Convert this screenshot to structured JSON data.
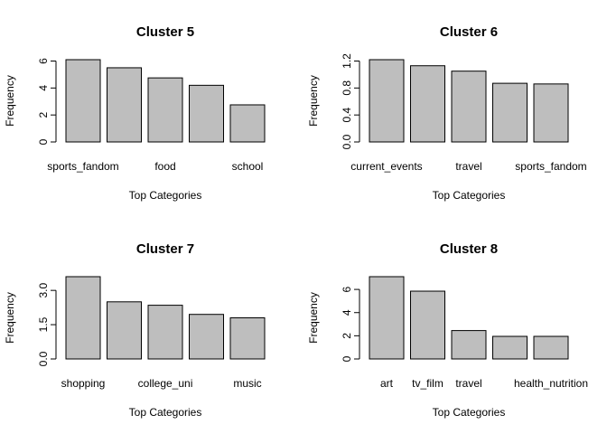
{
  "chart_data": [
    {
      "type": "bar",
      "title": "Cluster 5",
      "xlabel": "Top Categories",
      "ylabel": "Frequency",
      "categories": [
        "sports_fandom",
        "",
        "food",
        "",
        "school"
      ],
      "values": [
        6.1,
        5.5,
        4.75,
        4.2,
        2.75
      ],
      "ylim": [
        0,
        6.1
      ],
      "yticks": [
        0,
        2,
        4,
        6
      ],
      "ytick_labels": [
        "0",
        "2",
        "4",
        "6"
      ],
      "bar_color": "#bebebe"
    },
    {
      "type": "bar",
      "title": "Cluster 6",
      "xlabel": "Top Categories",
      "ylabel": "Frequency",
      "categories": [
        "current_events",
        "",
        "travel",
        "",
        "sports_fandom"
      ],
      "values": [
        1.22,
        1.13,
        1.05,
        0.87,
        0.86
      ],
      "ylim": [
        0,
        1.22
      ],
      "yticks": [
        0,
        0.4,
        0.8,
        1.2
      ],
      "ytick_labels": [
        "0.0",
        "0.4",
        "0.8",
        "1.2"
      ],
      "bar_color": "#bebebe"
    },
    {
      "type": "bar",
      "title": "Cluster 7",
      "xlabel": "Top Categories",
      "ylabel": "Frequency",
      "categories": [
        "shopping",
        "",
        "college_uni",
        "",
        "music"
      ],
      "values": [
        3.6,
        2.5,
        2.35,
        1.95,
        1.8
      ],
      "ylim": [
        0,
        3.6
      ],
      "yticks": [
        0,
        1.5,
        3
      ],
      "ytick_labels": [
        "0.0",
        "1.5",
        "3.0"
      ],
      "bar_color": "#bebebe"
    },
    {
      "type": "bar",
      "title": "Cluster 8",
      "xlabel": "Top Categories",
      "ylabel": "Frequency",
      "categories": [
        "art",
        "tv_film",
        "travel",
        "",
        "health_nutrition"
      ],
      "values": [
        7.1,
        5.85,
        2.45,
        1.95,
        1.95
      ],
      "ylim": [
        0,
        7.1
      ],
      "yticks": [
        0,
        2,
        4,
        6
      ],
      "ytick_labels": [
        "0",
        "2",
        "4",
        "6"
      ],
      "bar_color": "#bebebe"
    }
  ]
}
